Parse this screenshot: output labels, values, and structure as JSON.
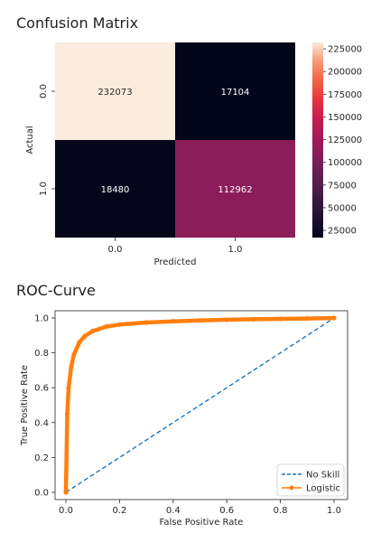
{
  "confusion_title": "Confusion Matrix",
  "roc_title": "ROC-Curve",
  "chart_data": [
    {
      "type": "heatmap",
      "title": "Confusion Matrix",
      "xlabel": "Predicted",
      "ylabel": "Actual",
      "x_categories": [
        "0.0",
        "1.0"
      ],
      "y_categories": [
        "0.0",
        "1.0"
      ],
      "values": [
        [
          232073,
          17104
        ],
        [
          18480,
          112962
        ]
      ],
      "colorbar": {
        "ticks": [
          "225000",
          "200000",
          "175000",
          "150000",
          "125000",
          "100000",
          "75000",
          "50000",
          "25000"
        ],
        "tick_values": [
          225000,
          200000,
          175000,
          150000,
          125000,
          100000,
          75000,
          50000,
          25000
        ],
        "min": 17104,
        "max": 232073
      }
    },
    {
      "type": "line",
      "title": "ROC-Curve",
      "xlabel": "False Positive Rate",
      "ylabel": "True Positive Rate",
      "xlim": [
        0,
        1
      ],
      "ylim": [
        0,
        1
      ],
      "xticks": [
        "0.0",
        "0.2",
        "0.4",
        "0.6",
        "0.8",
        "1.0"
      ],
      "yticks": [
        "0.0",
        "0.2",
        "0.4",
        "0.6",
        "0.8",
        "1.0"
      ],
      "legend_position": "bottom-right",
      "series": [
        {
          "name": "No Skill",
          "color": "#1f77b4",
          "style": "dashed",
          "x": [
            0,
            1
          ],
          "y": [
            0,
            1
          ]
        },
        {
          "name": "Logistic",
          "color": "#ff7f0e",
          "style": "solid-marker",
          "x": [
            0,
            0.005,
            0.01,
            0.02,
            0.03,
            0.05,
            0.07,
            0.1,
            0.15,
            0.2,
            0.3,
            0.4,
            0.5,
            0.6,
            0.7,
            0.8,
            0.9,
            1.0
          ],
          "y": [
            0,
            0.45,
            0.6,
            0.72,
            0.79,
            0.86,
            0.895,
            0.925,
            0.95,
            0.962,
            0.974,
            0.981,
            0.986,
            0.99,
            0.993,
            0.995,
            0.997,
            1.0
          ]
        }
      ]
    }
  ]
}
